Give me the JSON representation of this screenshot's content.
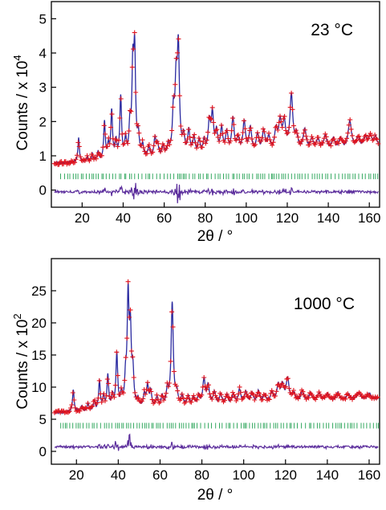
{
  "chart_data": [
    {
      "type": "line",
      "annotation": "23 °C",
      "xlabel": "2θ / °",
      "ylabel": "Counts / x 10⁴",
      "ylabel_base": "Counts / x 10",
      "ylabel_exp": "4",
      "xlim": [
        5,
        165
      ],
      "ylim": [
        -0.5,
        5.5
      ],
      "xticks": [
        20,
        40,
        60,
        80,
        100,
        120,
        140,
        160
      ],
      "xtick_labels": [
        "20",
        "40",
        "60",
        "80",
        "100",
        "120",
        "140",
        "160"
      ],
      "yticks": [
        0,
        1,
        2,
        3,
        4,
        5
      ],
      "ytick_labels": [
        "0",
        "1",
        "2",
        "3",
        "4",
        "5"
      ],
      "grid": false,
      "background": 0.78,
      "bg_end": 1.22,
      "reflection_tick_level": 0.4,
      "difference_level": -0.05,
      "peaks": [
        [
          18.3,
          0.7
        ],
        [
          22.5,
          0.12
        ],
        [
          25,
          0.2
        ],
        [
          27.8,
          0.25
        ],
        [
          30.9,
          1.1
        ],
        [
          32.8,
          0.4
        ],
        [
          34.4,
          1.4
        ],
        [
          36.5,
          0.5
        ],
        [
          38.8,
          1.8
        ],
        [
          41.2,
          0.5
        ],
        [
          43.3,
          0.9
        ],
        [
          44.7,
          2.4
        ],
        [
          45.6,
          2.9
        ],
        [
          47.4,
          0.6
        ],
        [
          49.5,
          0.35
        ],
        [
          52.5,
          0.3
        ],
        [
          55.5,
          0.55
        ],
        [
          56.8,
          0.35
        ],
        [
          59.5,
          0.3
        ],
        [
          62,
          0.3
        ],
        [
          64.5,
          1.2
        ],
        [
          65.8,
          1.9
        ],
        [
          66.9,
          3.0
        ],
        [
          69.5,
          0.5
        ],
        [
          72,
          0.7
        ],
        [
          74.5,
          0.5
        ],
        [
          77,
          0.4
        ],
        [
          79.5,
          0.4
        ],
        [
          82,
          0.9
        ],
        [
          83.5,
          1.1
        ],
        [
          85.5,
          0.6
        ],
        [
          88,
          0.7
        ],
        [
          90.5,
          0.6
        ],
        [
          93.5,
          1.0
        ],
        [
          96,
          0.4
        ],
        [
          99,
          0.9
        ],
        [
          102,
          0.7
        ],
        [
          105.5,
          0.5
        ],
        [
          108.5,
          0.6
        ],
        [
          111,
          0.4
        ],
        [
          114.5,
          0.6
        ],
        [
          116.5,
          0.8
        ],
        [
          118.5,
          0.8
        ],
        [
          122,
          1.6
        ],
        [
          124.5,
          0.4
        ],
        [
          128.5,
          0.6
        ],
        [
          132,
          0.3
        ],
        [
          135,
          0.3
        ],
        [
          138.5,
          0.4
        ],
        [
          142.5,
          0.3
        ],
        [
          146,
          0.3
        ],
        [
          150.5,
          0.8
        ],
        [
          154.5,
          0.3
        ],
        [
          158,
          0.3
        ],
        [
          160.5,
          0.3
        ],
        [
          163,
          0.3
        ]
      ],
      "series": [
        {
          "kind": "observed",
          "color": "#e0141e",
          "marker": "+"
        },
        {
          "kind": "calculated",
          "color": "#2a2aa0"
        },
        {
          "kind": "reflection_positions",
          "color": "#20a050"
        },
        {
          "kind": "difference",
          "color": "#5b2d9c"
        }
      ]
    },
    {
      "type": "line",
      "annotation": "1000 °C",
      "xlabel": "2θ / °",
      "ylabel": "Counts / x 10²",
      "ylabel_base": "Counts / x 10",
      "ylabel_exp": "2",
      "xlim": [
        8,
        165
      ],
      "ylim": [
        -2,
        30
      ],
      "xticks": [
        20,
        40,
        60,
        80,
        100,
        120,
        140,
        160
      ],
      "xtick_labels": [
        "20",
        "40",
        "60",
        "80",
        "100",
        "120",
        "140",
        "160"
      ],
      "yticks": [
        0,
        5,
        10,
        15,
        20,
        25
      ],
      "ytick_labels": [
        "0",
        "5",
        "10",
        "15",
        "20",
        "25"
      ],
      "grid": false,
      "background": 6.0,
      "bg_end": 8.2,
      "reflection_tick_level": 4.0,
      "difference_level": 0.7,
      "peaks": [
        [
          18.5,
          3.5
        ],
        [
          22.5,
          0.8
        ],
        [
          25.5,
          1.2
        ],
        [
          28.5,
          1.5
        ],
        [
          31,
          4.5
        ],
        [
          33,
          2.0
        ],
        [
          35,
          5.2
        ],
        [
          37.2,
          2.0
        ],
        [
          39.3,
          8.5
        ],
        [
          41.5,
          2.0
        ],
        [
          43.5,
          4.0
        ],
        [
          44.7,
          16.5
        ],
        [
          45.8,
          11.0
        ],
        [
          47,
          5.0
        ],
        [
          49.5,
          1.2
        ],
        [
          52.5,
          2.0
        ],
        [
          54,
          3.2
        ],
        [
          55.5,
          2.5
        ],
        [
          58.5,
          1.5
        ],
        [
          61,
          1.5
        ],
        [
          63.5,
          2.5
        ],
        [
          65.8,
          16.0
        ],
        [
          68,
          2.0
        ],
        [
          70.5,
          1.5
        ],
        [
          73.5,
          1.5
        ],
        [
          76,
          1.2
        ],
        [
          78.5,
          1.5
        ],
        [
          81,
          4.0
        ],
        [
          83,
          3.0
        ],
        [
          86,
          2.0
        ],
        [
          89,
          1.5
        ],
        [
          92,
          1.5
        ],
        [
          95,
          1.5
        ],
        [
          98,
          2.2
        ],
        [
          101,
          1.8
        ],
        [
          104,
          1.5
        ],
        [
          107,
          1.8
        ],
        [
          110,
          1.2
        ],
        [
          113.5,
          1.5
        ],
        [
          116.5,
          2.5
        ],
        [
          118.5,
          2.5
        ],
        [
          121,
          3.5
        ],
        [
          124,
          1.2
        ],
        [
          128,
          1.5
        ],
        [
          132,
          1.2
        ],
        [
          136,
          1.2
        ],
        [
          140,
          1.0
        ],
        [
          145,
          1.0
        ],
        [
          150,
          0.8
        ],
        [
          155,
          1.0
        ],
        [
          160,
          0.8
        ]
      ],
      "series": [
        {
          "kind": "observed",
          "color": "#e0141e",
          "marker": "+"
        },
        {
          "kind": "calculated",
          "color": "#2a2aa0"
        },
        {
          "kind": "reflection_positions",
          "color": "#20a050"
        },
        {
          "kind": "difference",
          "color": "#5b2d9c"
        }
      ]
    }
  ]
}
